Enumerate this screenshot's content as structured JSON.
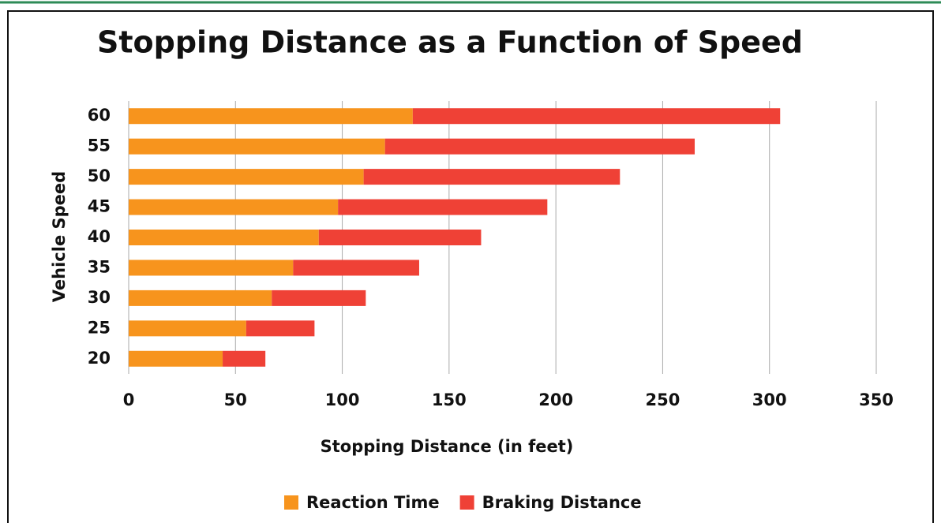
{
  "chart_data": {
    "type": "stacked_barh",
    "title": "Stopping Distance as a Function of Speed",
    "x_label": "Stopping Distance (in feet)",
    "y_label": "Vehicle Speed",
    "categories": [
      "20",
      "25",
      "30",
      "35",
      "40",
      "45",
      "50",
      "55",
      "60"
    ],
    "series": [
      {
        "name": "Reaction Time",
        "color": "#f7941d",
        "values": [
          44,
          55,
          67,
          77,
          89,
          98,
          110,
          120,
          133
        ]
      },
      {
        "name": "Braking Distance",
        "color": "#ef4136",
        "values": [
          20,
          32,
          44,
          59,
          76,
          98,
          120,
          145,
          172
        ]
      }
    ],
    "xlim": [
      0,
      350
    ],
    "xticks": [
      0,
      50,
      100,
      150,
      200,
      250,
      300,
      350
    ],
    "grid": true,
    "legend": "bottom"
  }
}
